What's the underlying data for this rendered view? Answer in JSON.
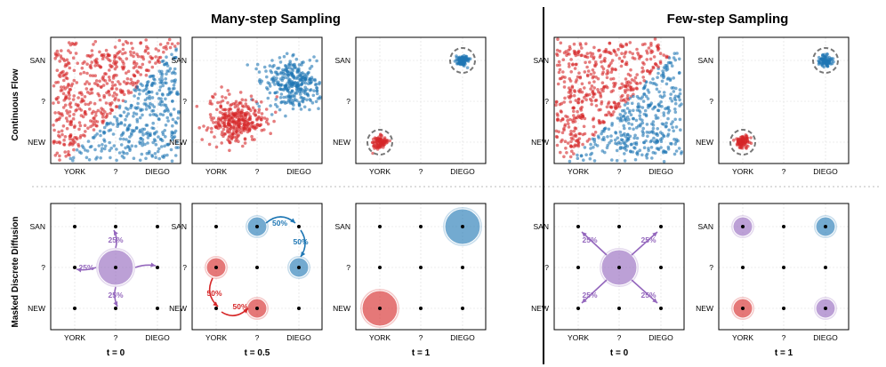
{
  "headers": {
    "many": "Many-step Sampling",
    "few": "Few-step Sampling"
  },
  "row_labels": {
    "top": "Continuous Flow",
    "bottom": "Masked Discrete Diffusion"
  },
  "ticks": {
    "x": [
      "YORK",
      "?",
      "DIEGO"
    ],
    "y": [
      "SAN",
      "?",
      "NEW"
    ]
  },
  "time_labels": [
    "t = 0",
    "t = 0.5",
    "t = 1",
    "t = 0",
    "t = 1"
  ],
  "colors": {
    "red": "#d62728",
    "blue": "#1f77b4",
    "purple": "#9467bd",
    "dot": "#000000",
    "divider": "#000000"
  },
  "percent_labels": {
    "p25": "25%",
    "p50": "50%"
  },
  "flow_panels": [
    {
      "kind": "initial"
    },
    {
      "kind": "clusters"
    },
    {
      "kind": "final"
    },
    {
      "kind": "initial"
    },
    {
      "kind": "final"
    }
  ],
  "discrete_panels": [
    {
      "circles": [
        {
          "col": 1,
          "row": 1,
          "color": "purple",
          "size": "large"
        }
      ],
      "labels": [
        {
          "text": "25%",
          "color": "purple",
          "at": "top"
        },
        {
          "text": "25%",
          "color": "purple",
          "at": "left"
        },
        {
          "text": "25%",
          "color": "purple",
          "at": "bottom"
        }
      ]
    },
    {
      "circles": [
        {
          "col": 1,
          "row": 0,
          "color": "blue",
          "size": "small"
        },
        {
          "col": 2,
          "row": 1,
          "color": "blue",
          "size": "small"
        },
        {
          "col": 0,
          "row": 1,
          "color": "red",
          "size": "small"
        },
        {
          "col": 1,
          "row": 2,
          "color": "red",
          "size": "small"
        }
      ],
      "labels": [
        {
          "text": "50%",
          "color": "blue",
          "at": "top-right-a"
        },
        {
          "text": "50%",
          "color": "blue",
          "at": "top-right-b"
        },
        {
          "text": "50%",
          "color": "red",
          "at": "bottom-left-a"
        },
        {
          "text": "50%",
          "color": "red",
          "at": "bottom-left-b"
        }
      ]
    },
    {
      "circles": [
        {
          "col": 2,
          "row": 0,
          "color": "blue",
          "size": "large"
        },
        {
          "col": 0,
          "row": 2,
          "color": "red",
          "size": "large"
        }
      ],
      "labels": []
    },
    {
      "circles": [
        {
          "col": 1,
          "row": 1,
          "color": "purple",
          "size": "large"
        }
      ],
      "labels": [
        {
          "text": "25%",
          "color": "purple",
          "at": "nw"
        },
        {
          "text": "25%",
          "color": "purple",
          "at": "ne"
        },
        {
          "text": "25%",
          "color": "purple",
          "at": "sw"
        },
        {
          "text": "25%",
          "color": "purple",
          "at": "se"
        }
      ]
    },
    {
      "circles": [
        {
          "col": 0,
          "row": 0,
          "color": "purple",
          "size": "small"
        },
        {
          "col": 2,
          "row": 0,
          "color": "blue",
          "size": "small"
        },
        {
          "col": 0,
          "row": 2,
          "color": "red",
          "size": "small"
        },
        {
          "col": 2,
          "row": 2,
          "color": "purple",
          "size": "small"
        }
      ],
      "labels": []
    }
  ]
}
